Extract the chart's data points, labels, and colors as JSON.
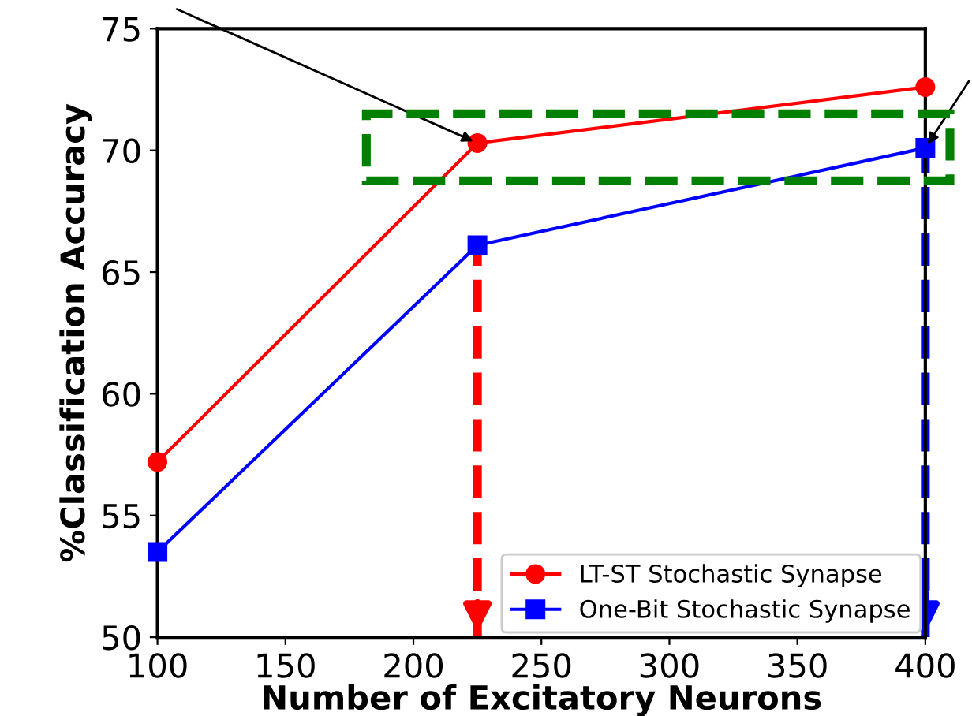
{
  "chart_data": {
    "type": "line",
    "xlabel": "Number of Excitatory Neurons",
    "ylabel": "%Classification Accuracy",
    "x": [
      100,
      225,
      400
    ],
    "series": [
      {
        "name": "LT-ST Stochastic Synapse",
        "color": "#ff0000",
        "values": [
          57.2,
          70.3,
          72.6
        ],
        "marker": "circle"
      },
      {
        "name": "One-Bit Stochastic Synapse",
        "color": "#0000ff",
        "values": [
          53.5,
          66.1,
          70.1
        ],
        "marker": "square"
      }
    ],
    "xlim": [
      100,
      400
    ],
    "xticks": [
      100,
      150,
      200,
      250,
      300,
      350,
      400
    ],
    "ylim": [
      50,
      75
    ],
    "yticks": [
      50,
      55,
      60,
      65,
      70,
      75
    ],
    "ref_lines": [
      {
        "axis": "x",
        "value": 225,
        "color": "#ff0000",
        "line_style": "dashed"
      },
      {
        "axis": "x",
        "value": 400,
        "color": "#0000ff",
        "line_style": "dashed"
      }
    ],
    "grid": false,
    "legend": "bottom right",
    "line_style": "solid"
  }
}
